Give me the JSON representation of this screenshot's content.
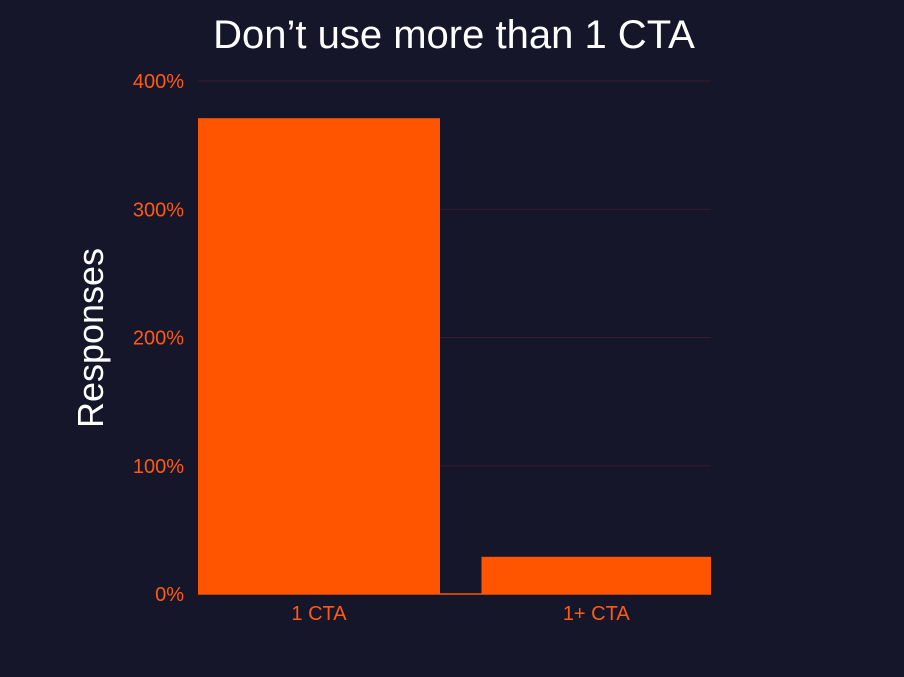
{
  "colors": {
    "background": "#15162a",
    "bar": "#ff5500",
    "tick_text": "#ff5a14",
    "title_text": "#ffffff",
    "gridline": "#3a1a2a",
    "baseline": "#ff5500"
  },
  "chart_data": {
    "type": "bar",
    "title": "Don’t use more than 1 CTA",
    "xlabel": "",
    "ylabel": "Responses",
    "categories": [
      "1 CTA",
      "1+ CTA"
    ],
    "values": [
      371,
      29
    ],
    "value_unit": "%",
    "ylim": [
      0,
      400
    ],
    "yticks": [
      0,
      100,
      200,
      300,
      400
    ],
    "ytick_labels": [
      "0%",
      "100%",
      "200%",
      "300%",
      "400%"
    ],
    "grid": true,
    "legend": "none"
  }
}
